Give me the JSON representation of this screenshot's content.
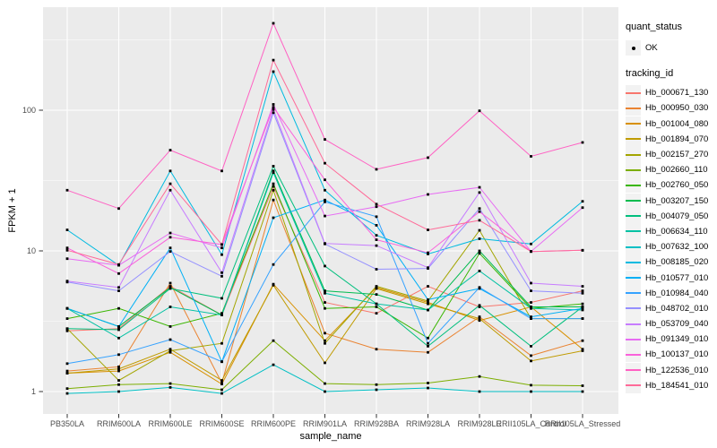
{
  "legend": {
    "quant_status_title": "quant_status",
    "quant_status_value": "OK",
    "tracking_id_title": "tracking_id"
  },
  "chart_data": {
    "type": "line",
    "title": "",
    "xlabel": "sample_name",
    "ylabel": "FPKM + 1",
    "y_scale": "log10",
    "ylim": [
      0.7,
      540
    ],
    "grid": true,
    "panel_bg": "#EBEBEB",
    "grid_color": "#FFFFFF",
    "point_color": "#000000",
    "tick_label_color": "#4D4D4D",
    "legend_position": "right",
    "y_ticks": [
      {
        "value": 1,
        "label": "1"
      },
      {
        "value": 10,
        "label": "10"
      },
      {
        "value": 100,
        "label": "100"
      }
    ],
    "categories": [
      "PB350LA",
      "RRIM600LA",
      "RRIM600LE",
      "RRIM600SE",
      "RRIM600PE",
      "RRIM901LA",
      "RRIM928BA",
      "RRIM928LA",
      "RRIM928LE",
      "RRII105LA_Control",
      "RRII105LA_Stressed"
    ],
    "series": [
      {
        "tracking_id": "Hb_000671_130",
        "color": "#F8766D",
        "values": [
          2.7,
          2.8,
          5.6,
          3.5,
          28.7,
          4.3,
          3.6,
          5.6,
          4.0,
          4.3,
          5.2
        ]
      },
      {
        "tracking_id": "Hb_000950_030",
        "color": "#EA8331",
        "values": [
          1.4,
          1.5,
          5.9,
          1.15,
          23,
          2.6,
          2.0,
          1.9,
          3.4,
          1.8,
          2.3
        ]
      },
      {
        "tracking_id": "Hb_001004_080",
        "color": "#D89000",
        "values": [
          1.35,
          1.4,
          1.9,
          1.13,
          5.8,
          2.3,
          5.5,
          4.3,
          3.2,
          4.0,
          2.0
        ]
      },
      {
        "tracking_id": "Hb_001894_070",
        "color": "#C09B00",
        "values": [
          1.35,
          1.45,
          2.0,
          1.2,
          5.7,
          1.6,
          5.4,
          4.2,
          3.3,
          1.65,
          1.95
        ]
      },
      {
        "tracking_id": "Hb_002157_270",
        "color": "#A3A500",
        "values": [
          2.8,
          1.2,
          1.95,
          2.2,
          27,
          2.2,
          5.6,
          4.4,
          14,
          3.3,
          3.3
        ]
      },
      {
        "tracking_id": "Hb_002660_110",
        "color": "#7CAE00",
        "values": [
          1.05,
          1.12,
          1.14,
          1.03,
          2.3,
          1.14,
          1.12,
          1.15,
          1.28,
          1.11,
          1.1
        ]
      },
      {
        "tracking_id": "Hb_002760_050",
        "color": "#39B600",
        "values": [
          3.3,
          3.9,
          2.9,
          3.6,
          30,
          3.9,
          4.0,
          2.4,
          9.6,
          3.9,
          4.2
        ]
      },
      {
        "tracking_id": "Hb_003207_150",
        "color": "#00BB4E",
        "values": [
          3.9,
          2.9,
          5.5,
          3.5,
          37,
          5.2,
          4.9,
          3.8,
          10,
          4.0,
          4.0
        ]
      },
      {
        "tracking_id": "Hb_004079_050",
        "color": "#00BF7D",
        "values": [
          2.8,
          2.75,
          5.4,
          4.6,
          40,
          7.8,
          4.2,
          2.1,
          4.1,
          2.1,
          4.0
        ]
      },
      {
        "tracking_id": "Hb_006634_110",
        "color": "#00C1A3",
        "values": [
          3.9,
          2.4,
          4.0,
          3.5,
          36,
          5.0,
          4.2,
          3.8,
          7.2,
          3.9,
          3.8
        ]
      },
      {
        "tracking_id": "Hb_007632_100",
        "color": "#00BFC4",
        "values": [
          0.97,
          1.0,
          1.07,
          0.97,
          1.55,
          1.0,
          1.03,
          1.06,
          1.0,
          1.0,
          1.0
        ]
      },
      {
        "tracking_id": "Hb_008185_020",
        "color": "#00BAE0",
        "values": [
          14.1,
          7.9,
          37,
          9.4,
          188,
          27,
          12.9,
          9.5,
          12.2,
          11.2,
          22.5
        ]
      },
      {
        "tracking_id": "Hb_010577_010",
        "color": "#00B0F6",
        "values": [
          3.9,
          2.9,
          10.5,
          1.63,
          17.2,
          23,
          15.2,
          4.5,
          5.4,
          3.4,
          3.9
        ]
      },
      {
        "tracking_id": "Hb_010984_040",
        "color": "#35A2FF",
        "values": [
          1.58,
          1.83,
          2.34,
          1.63,
          8.0,
          22.3,
          17.5,
          2.2,
          5.5,
          3.3,
          3.3
        ]
      },
      {
        "tracking_id": "Hb_048702_010",
        "color": "#9590FF",
        "values": [
          6.0,
          5.2,
          9.9,
          6.6,
          96,
          11.2,
          7.4,
          7.5,
          20,
          5.2,
          5.0
        ]
      },
      {
        "tracking_id": "Hb_053709_040",
        "color": "#C77CFF",
        "values": [
          6.1,
          5.5,
          27,
          7.0,
          101,
          11.3,
          10.9,
          7.6,
          26,
          5.9,
          5.6
        ]
      },
      {
        "tracking_id": "Hb_091349_010",
        "color": "#E76BF3",
        "values": [
          8.8,
          7.9,
          13.4,
          10.5,
          110,
          17.7,
          20.6,
          25.2,
          28.3,
          9.9,
          20.3
        ]
      },
      {
        "tracking_id": "Hb_100137_010",
        "color": "#FA62DB",
        "values": [
          10.5,
          6.9,
          12.5,
          11.1,
          105,
          32,
          12.0,
          9.7,
          19,
          9.9,
          10.1
        ]
      },
      {
        "tracking_id": "Hb_122536_010",
        "color": "#FF61C3",
        "values": [
          27,
          20,
          52,
          37,
          415,
          62,
          38,
          46,
          99,
          47,
          59
        ]
      },
      {
        "tracking_id": "Hb_184541_010",
        "color": "#FF6A98",
        "values": [
          10.1,
          8.0,
          30,
          11.1,
          227,
          42,
          21.5,
          14.1,
          16.5,
          9.9,
          10.1
        ]
      }
    ]
  }
}
